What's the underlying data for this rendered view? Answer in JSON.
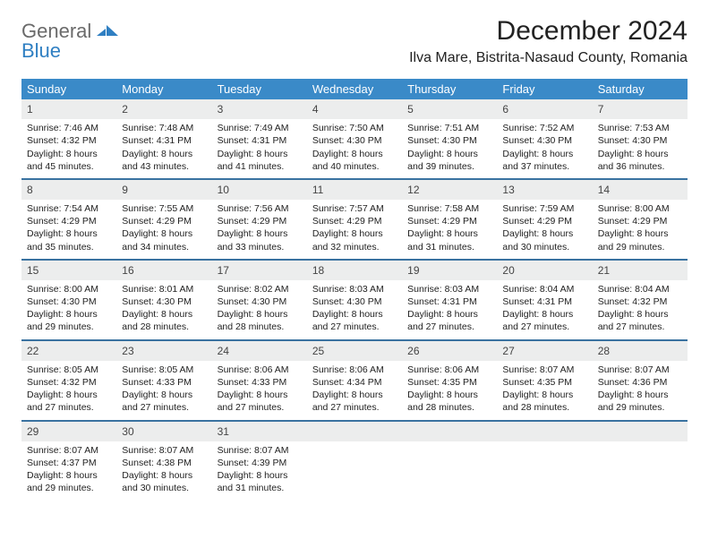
{
  "logo": {
    "text1": "General",
    "text2": "Blue"
  },
  "title": "December 2024",
  "location": "Ilva Mare, Bistrita-Nasaud County, Romania",
  "colors": {
    "header_bg": "#3a8ac8",
    "week_divider": "#3a72a0",
    "daynum_bg": "#eceded",
    "logo_gray": "#6a6a6a",
    "logo_blue": "#2f7fc2"
  },
  "weekdays": [
    "Sunday",
    "Monday",
    "Tuesday",
    "Wednesday",
    "Thursday",
    "Friday",
    "Saturday"
  ],
  "weeks": [
    [
      {
        "n": "1",
        "sr": "Sunrise: 7:46 AM",
        "ss": "Sunset: 4:32 PM",
        "dl": "Daylight: 8 hours and 45 minutes."
      },
      {
        "n": "2",
        "sr": "Sunrise: 7:48 AM",
        "ss": "Sunset: 4:31 PM",
        "dl": "Daylight: 8 hours and 43 minutes."
      },
      {
        "n": "3",
        "sr": "Sunrise: 7:49 AM",
        "ss": "Sunset: 4:31 PM",
        "dl": "Daylight: 8 hours and 41 minutes."
      },
      {
        "n": "4",
        "sr": "Sunrise: 7:50 AM",
        "ss": "Sunset: 4:30 PM",
        "dl": "Daylight: 8 hours and 40 minutes."
      },
      {
        "n": "5",
        "sr": "Sunrise: 7:51 AM",
        "ss": "Sunset: 4:30 PM",
        "dl": "Daylight: 8 hours and 39 minutes."
      },
      {
        "n": "6",
        "sr": "Sunrise: 7:52 AM",
        "ss": "Sunset: 4:30 PM",
        "dl": "Daylight: 8 hours and 37 minutes."
      },
      {
        "n": "7",
        "sr": "Sunrise: 7:53 AM",
        "ss": "Sunset: 4:30 PM",
        "dl": "Daylight: 8 hours and 36 minutes."
      }
    ],
    [
      {
        "n": "8",
        "sr": "Sunrise: 7:54 AM",
        "ss": "Sunset: 4:29 PM",
        "dl": "Daylight: 8 hours and 35 minutes."
      },
      {
        "n": "9",
        "sr": "Sunrise: 7:55 AM",
        "ss": "Sunset: 4:29 PM",
        "dl": "Daylight: 8 hours and 34 minutes."
      },
      {
        "n": "10",
        "sr": "Sunrise: 7:56 AM",
        "ss": "Sunset: 4:29 PM",
        "dl": "Daylight: 8 hours and 33 minutes."
      },
      {
        "n": "11",
        "sr": "Sunrise: 7:57 AM",
        "ss": "Sunset: 4:29 PM",
        "dl": "Daylight: 8 hours and 32 minutes."
      },
      {
        "n": "12",
        "sr": "Sunrise: 7:58 AM",
        "ss": "Sunset: 4:29 PM",
        "dl": "Daylight: 8 hours and 31 minutes."
      },
      {
        "n": "13",
        "sr": "Sunrise: 7:59 AM",
        "ss": "Sunset: 4:29 PM",
        "dl": "Daylight: 8 hours and 30 minutes."
      },
      {
        "n": "14",
        "sr": "Sunrise: 8:00 AM",
        "ss": "Sunset: 4:29 PM",
        "dl": "Daylight: 8 hours and 29 minutes."
      }
    ],
    [
      {
        "n": "15",
        "sr": "Sunrise: 8:00 AM",
        "ss": "Sunset: 4:30 PM",
        "dl": "Daylight: 8 hours and 29 minutes."
      },
      {
        "n": "16",
        "sr": "Sunrise: 8:01 AM",
        "ss": "Sunset: 4:30 PM",
        "dl": "Daylight: 8 hours and 28 minutes."
      },
      {
        "n": "17",
        "sr": "Sunrise: 8:02 AM",
        "ss": "Sunset: 4:30 PM",
        "dl": "Daylight: 8 hours and 28 minutes."
      },
      {
        "n": "18",
        "sr": "Sunrise: 8:03 AM",
        "ss": "Sunset: 4:30 PM",
        "dl": "Daylight: 8 hours and 27 minutes."
      },
      {
        "n": "19",
        "sr": "Sunrise: 8:03 AM",
        "ss": "Sunset: 4:31 PM",
        "dl": "Daylight: 8 hours and 27 minutes."
      },
      {
        "n": "20",
        "sr": "Sunrise: 8:04 AM",
        "ss": "Sunset: 4:31 PM",
        "dl": "Daylight: 8 hours and 27 minutes."
      },
      {
        "n": "21",
        "sr": "Sunrise: 8:04 AM",
        "ss": "Sunset: 4:32 PM",
        "dl": "Daylight: 8 hours and 27 minutes."
      }
    ],
    [
      {
        "n": "22",
        "sr": "Sunrise: 8:05 AM",
        "ss": "Sunset: 4:32 PM",
        "dl": "Daylight: 8 hours and 27 minutes."
      },
      {
        "n": "23",
        "sr": "Sunrise: 8:05 AM",
        "ss": "Sunset: 4:33 PM",
        "dl": "Daylight: 8 hours and 27 minutes."
      },
      {
        "n": "24",
        "sr": "Sunrise: 8:06 AM",
        "ss": "Sunset: 4:33 PM",
        "dl": "Daylight: 8 hours and 27 minutes."
      },
      {
        "n": "25",
        "sr": "Sunrise: 8:06 AM",
        "ss": "Sunset: 4:34 PM",
        "dl": "Daylight: 8 hours and 27 minutes."
      },
      {
        "n": "26",
        "sr": "Sunrise: 8:06 AM",
        "ss": "Sunset: 4:35 PM",
        "dl": "Daylight: 8 hours and 28 minutes."
      },
      {
        "n": "27",
        "sr": "Sunrise: 8:07 AM",
        "ss": "Sunset: 4:35 PM",
        "dl": "Daylight: 8 hours and 28 minutes."
      },
      {
        "n": "28",
        "sr": "Sunrise: 8:07 AM",
        "ss": "Sunset: 4:36 PM",
        "dl": "Daylight: 8 hours and 29 minutes."
      }
    ],
    [
      {
        "n": "29",
        "sr": "Sunrise: 8:07 AM",
        "ss": "Sunset: 4:37 PM",
        "dl": "Daylight: 8 hours and 29 minutes."
      },
      {
        "n": "30",
        "sr": "Sunrise: 8:07 AM",
        "ss": "Sunset: 4:38 PM",
        "dl": "Daylight: 8 hours and 30 minutes."
      },
      {
        "n": "31",
        "sr": "Sunrise: 8:07 AM",
        "ss": "Sunset: 4:39 PM",
        "dl": "Daylight: 8 hours and 31 minutes."
      },
      {
        "n": "",
        "sr": "",
        "ss": "",
        "dl": "",
        "empty": true
      },
      {
        "n": "",
        "sr": "",
        "ss": "",
        "dl": "",
        "empty": true
      },
      {
        "n": "",
        "sr": "",
        "ss": "",
        "dl": "",
        "empty": true
      },
      {
        "n": "",
        "sr": "",
        "ss": "",
        "dl": "",
        "empty": true
      }
    ]
  ]
}
